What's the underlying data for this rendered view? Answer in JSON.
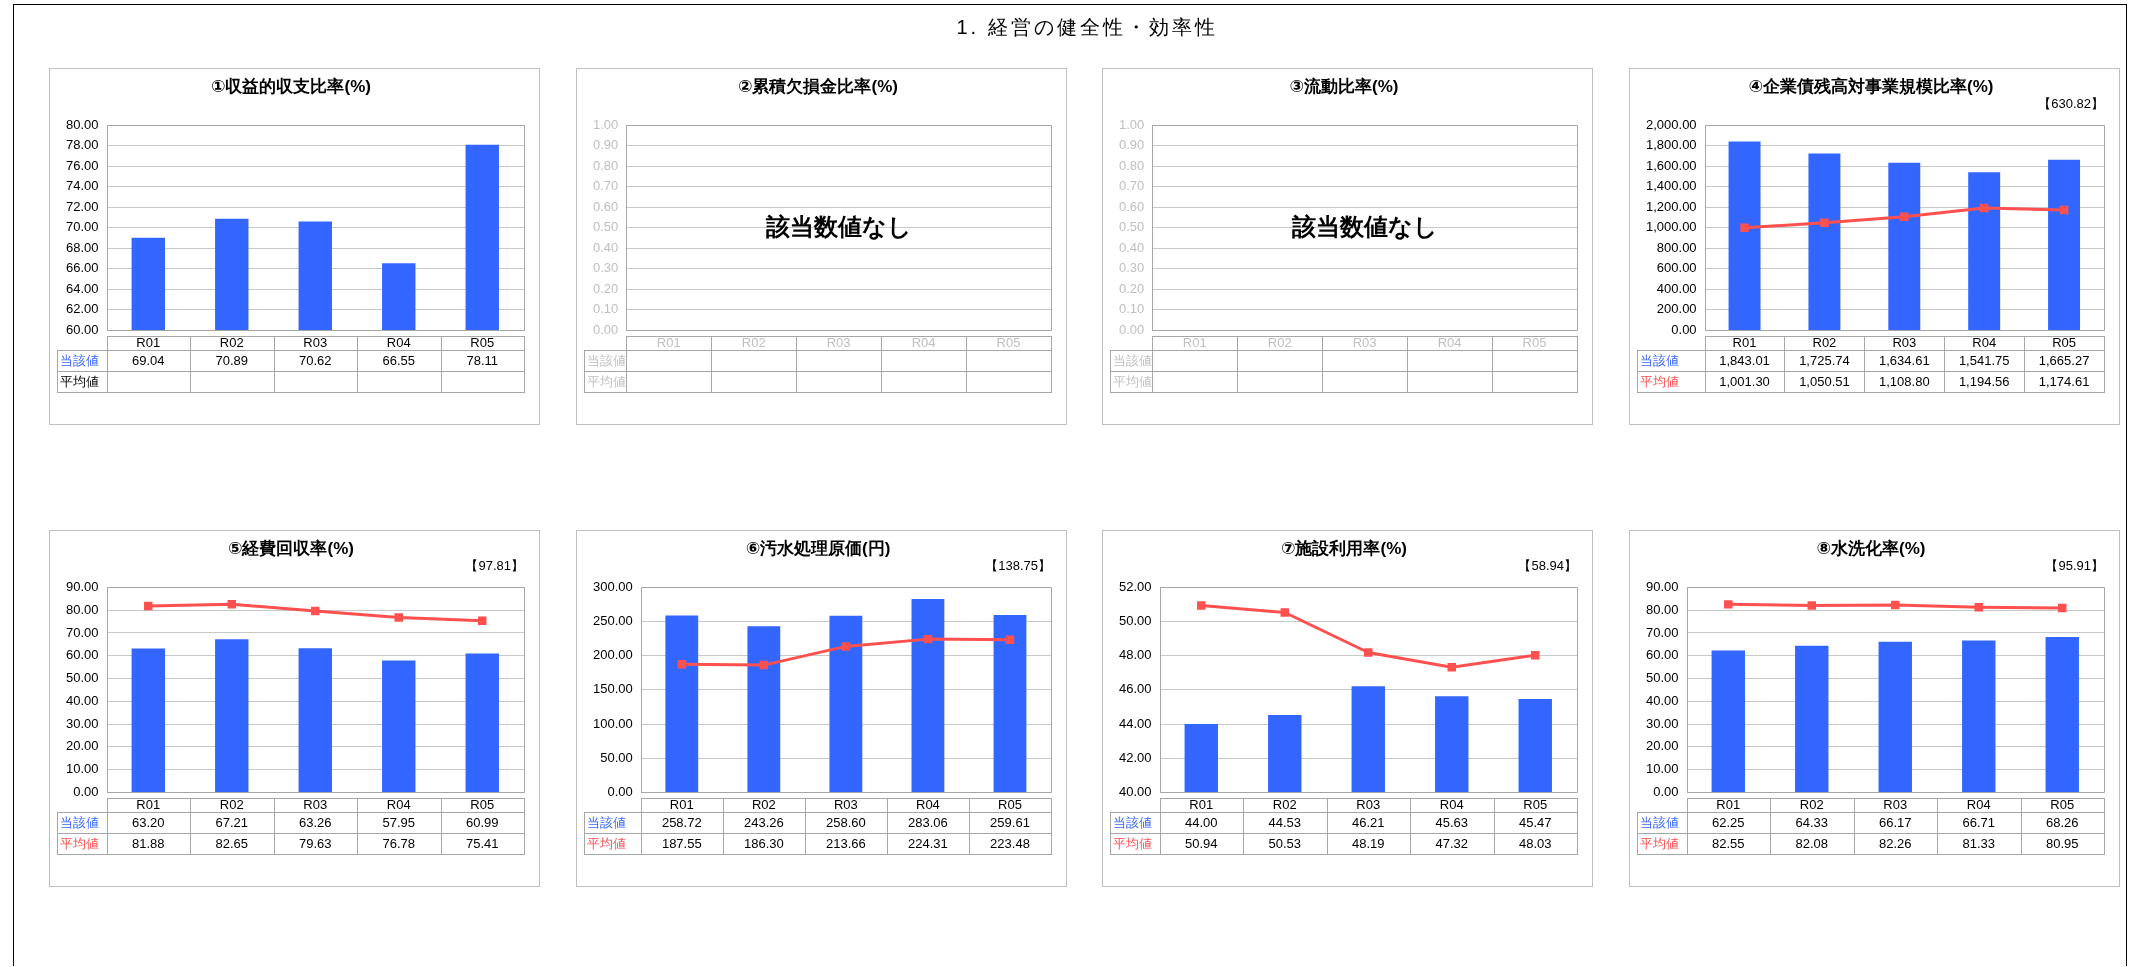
{
  "chart_data": [
    {
      "type": "other",
      "title": "1. 経営の健全性・効率性"
    },
    {
      "type": "bar",
      "title": "①収益的収支比率(%)",
      "categories": [
        "R01",
        "R02",
        "R03",
        "R04",
        "R05"
      ],
      "series": [
        {
          "name": "当該値",
          "color": "#3366ff",
          "values": [
            69.04,
            70.89,
            70.62,
            66.55,
            78.11
          ],
          "value_labels": [
            "69.04",
            "70.89",
            "70.62",
            "66.55",
            "78.11"
          ]
        },
        {
          "name": "平均値",
          "type": "line",
          "values": [
            null,
            null,
            null,
            null,
            null
          ]
        }
      ],
      "ylim": [
        60,
        80
      ],
      "yticks": [
        {
          "value": 60,
          "label": "60.00"
        },
        {
          "value": 62,
          "label": "62.00"
        },
        {
          "value": 64,
          "label": "64.00"
        },
        {
          "value": 66,
          "label": "66.00"
        },
        {
          "value": 68,
          "label": "68.00"
        },
        {
          "value": 70,
          "label": "70.00"
        },
        {
          "value": 72,
          "label": "72.00"
        },
        {
          "value": 74,
          "label": "74.00"
        },
        {
          "value": 76,
          "label": "76.00"
        },
        {
          "value": 78,
          "label": "78.00"
        },
        {
          "value": 80,
          "label": "80.00"
        }
      ],
      "grid": "y"
    },
    {
      "type": "bar",
      "title": "②累積欠損金比率(%)",
      "categories": [
        "R01",
        "R02",
        "R03",
        "R04",
        "R05"
      ],
      "series": [
        {
          "name": "当該値",
          "values": [
            null,
            null,
            null,
            null,
            null
          ]
        },
        {
          "name": "平均値",
          "values": [
            null,
            null,
            null,
            null,
            null
          ]
        }
      ],
      "ylim": [
        0,
        1
      ],
      "yticks": [
        {
          "value": 0,
          "label": "0.00"
        },
        {
          "value": 0.1,
          "label": "0.10"
        },
        {
          "value": 0.2,
          "label": "0.20"
        },
        {
          "value": 0.3,
          "label": "0.30"
        },
        {
          "value": 0.4,
          "label": "0.40"
        },
        {
          "value": 0.5,
          "label": "0.50"
        },
        {
          "value": 0.6,
          "label": "0.60"
        },
        {
          "value": 0.7,
          "label": "0.70"
        },
        {
          "value": 0.8,
          "label": "0.80"
        },
        {
          "value": 0.9,
          "label": "0.90"
        },
        {
          "value": 1,
          "label": "1.00"
        }
      ],
      "grid": "y",
      "annotations": [
        "該当数値なし"
      ]
    },
    {
      "type": "bar",
      "title": "③流動比率(%)",
      "categories": [
        "R01",
        "R02",
        "R03",
        "R04",
        "R05"
      ],
      "series": [
        {
          "name": "当該値",
          "values": [
            null,
            null,
            null,
            null,
            null
          ]
        },
        {
          "name": "平均値",
          "values": [
            null,
            null,
            null,
            null,
            null
          ]
        }
      ],
      "ylim": [
        0,
        1
      ],
      "yticks": [
        {
          "value": 0,
          "label": "0.00"
        },
        {
          "value": 0.1,
          "label": "0.10"
        },
        {
          "value": 0.2,
          "label": "0.20"
        },
        {
          "value": 0.3,
          "label": "0.30"
        },
        {
          "value": 0.4,
          "label": "0.40"
        },
        {
          "value": 0.5,
          "label": "0.50"
        },
        {
          "value": 0.6,
          "label": "0.60"
        },
        {
          "value": 0.7,
          "label": "0.70"
        },
        {
          "value": 0.8,
          "label": "0.80"
        },
        {
          "value": 0.9,
          "label": "0.90"
        },
        {
          "value": 1,
          "label": "1.00"
        }
      ],
      "grid": "y",
      "annotations": [
        "該当数値なし"
      ]
    },
    {
      "type": "bar",
      "title": "④企業債残高対事業規模比率(%)",
      "categories": [
        "R01",
        "R02",
        "R03",
        "R04",
        "R05"
      ],
      "series": [
        {
          "name": "当該値",
          "color": "#3366ff",
          "values": [
            1843.01,
            1725.74,
            1634.61,
            1541.75,
            1665.27
          ],
          "value_labels": [
            "1,843.01",
            "1,725.74",
            "1,634.61",
            "1,541.75",
            "1,665.27"
          ]
        },
        {
          "name": "平均値",
          "type": "line",
          "color": "#ff5050",
          "values": [
            1001.3,
            1050.51,
            1108.8,
            1194.56,
            1174.61
          ],
          "value_labels": [
            "1,001.30",
            "1,050.51",
            "1,108.80",
            "1,194.56",
            "1,174.61"
          ]
        }
      ],
      "ylim": [
        0,
        2000
      ],
      "yticks": [
        {
          "value": 0,
          "label": "0.00"
        },
        {
          "value": 200,
          "label": "200.00"
        },
        {
          "value": 400,
          "label": "400.00"
        },
        {
          "value": 600,
          "label": "600.00"
        },
        {
          "value": 800,
          "label": "800.00"
        },
        {
          "value": 1000,
          "label": "1,000.00"
        },
        {
          "value": 1200,
          "label": "1,200.00"
        },
        {
          "value": 1400,
          "label": "1,400.00"
        },
        {
          "value": 1600,
          "label": "1,600.00"
        },
        {
          "value": 1800,
          "label": "1,800.00"
        },
        {
          "value": 2000,
          "label": "2,000.00"
        }
      ],
      "grid": "y",
      "marker": "square",
      "annotations": [
        "【630.82】"
      ]
    },
    {
      "type": "bar",
      "title": "⑤経費回収率(%)",
      "categories": [
        "R01",
        "R02",
        "R03",
        "R04",
        "R05"
      ],
      "series": [
        {
          "name": "当該値",
          "color": "#3366ff",
          "values": [
            63.2,
            67.21,
            63.26,
            57.95,
            60.99
          ],
          "value_labels": [
            "63.20",
            "67.21",
            "63.26",
            "57.95",
            "60.99"
          ]
        },
        {
          "name": "平均値",
          "type": "line",
          "color": "#ff5050",
          "values": [
            81.88,
            82.65,
            79.63,
            76.78,
            75.41
          ],
          "value_labels": [
            "81.88",
            "82.65",
            "79.63",
            "76.78",
            "75.41"
          ]
        }
      ],
      "ylim": [
        0,
        90
      ],
      "yticks": [
        {
          "value": 0,
          "label": "0.00"
        },
        {
          "value": 10,
          "label": "10.00"
        },
        {
          "value": 20,
          "label": "20.00"
        },
        {
          "value": 30,
          "label": "30.00"
        },
        {
          "value": 40,
          "label": "40.00"
        },
        {
          "value": 50,
          "label": "50.00"
        },
        {
          "value": 60,
          "label": "60.00"
        },
        {
          "value": 70,
          "label": "70.00"
        },
        {
          "value": 80,
          "label": "80.00"
        },
        {
          "value": 90,
          "label": "90.00"
        }
      ],
      "grid": "y",
      "marker": "square",
      "annotations": [
        "【97.81】"
      ]
    },
    {
      "type": "bar",
      "title": "⑥汚水処理原価(円)",
      "categories": [
        "R01",
        "R02",
        "R03",
        "R04",
        "R05"
      ],
      "series": [
        {
          "name": "当該値",
          "color": "#3366ff",
          "values": [
            258.72,
            243.26,
            258.6,
            283.06,
            259.61
          ],
          "value_labels": [
            "258.72",
            "243.26",
            "258.60",
            "283.06",
            "259.61"
          ]
        },
        {
          "name": "平均値",
          "type": "line",
          "color": "#ff5050",
          "values": [
            187.55,
            186.3,
            213.66,
            224.31,
            223.48
          ],
          "value_labels": [
            "187.55",
            "186.30",
            "213.66",
            "224.31",
            "223.48"
          ]
        }
      ],
      "ylim": [
        0,
        300
      ],
      "yticks": [
        {
          "value": 0,
          "label": "0.00"
        },
        {
          "value": 50,
          "label": "50.00"
        },
        {
          "value": 100,
          "label": "100.00"
        },
        {
          "value": 150,
          "label": "150.00"
        },
        {
          "value": 200,
          "label": "200.00"
        },
        {
          "value": 250,
          "label": "250.00"
        },
        {
          "value": 300,
          "label": "300.00"
        }
      ],
      "grid": "y",
      "marker": "square",
      "annotations": [
        "【138.75】"
      ]
    },
    {
      "type": "bar",
      "title": "⑦施設利用率(%)",
      "categories": [
        "R01",
        "R02",
        "R03",
        "R04",
        "R05"
      ],
      "series": [
        {
          "name": "当該値",
          "color": "#3366ff",
          "values": [
            44.0,
            44.53,
            46.21,
            45.63,
            45.47
          ],
          "value_labels": [
            "44.00",
            "44.53",
            "46.21",
            "45.63",
            "45.47"
          ]
        },
        {
          "name": "平均値",
          "type": "line",
          "color": "#ff5050",
          "values": [
            50.94,
            50.53,
            48.19,
            47.32,
            48.03
          ],
          "value_labels": [
            "50.94",
            "50.53",
            "48.19",
            "47.32",
            "48.03"
          ]
        }
      ],
      "ylim": [
        40,
        52
      ],
      "yticks": [
        {
          "value": 40,
          "label": "40.00"
        },
        {
          "value": 42,
          "label": "42.00"
        },
        {
          "value": 44,
          "label": "44.00"
        },
        {
          "value": 46,
          "label": "46.00"
        },
        {
          "value": 48,
          "label": "48.00"
        },
        {
          "value": 50,
          "label": "50.00"
        },
        {
          "value": 52,
          "label": "52.00"
        }
      ],
      "grid": "y",
      "marker": "square",
      "annotations": [
        "【58.94】"
      ]
    },
    {
      "type": "bar",
      "title": "⑧水洗化率(%)",
      "categories": [
        "R01",
        "R02",
        "R03",
        "R04",
        "R05"
      ],
      "series": [
        {
          "name": "当該値",
          "color": "#3366ff",
          "values": [
            62.25,
            64.33,
            66.17,
            66.71,
            68.26
          ],
          "value_labels": [
            "62.25",
            "64.33",
            "66.17",
            "66.71",
            "68.26"
          ]
        },
        {
          "name": "平均値",
          "type": "line",
          "color": "#ff5050",
          "values": [
            82.55,
            82.08,
            82.26,
            81.33,
            80.95
          ],
          "value_labels": [
            "82.55",
            "82.08",
            "82.26",
            "81.33",
            "80.95"
          ]
        }
      ],
      "ylim": [
        0,
        90
      ],
      "yticks": [
        {
          "value": 0,
          "label": "0.00"
        },
        {
          "value": 10,
          "label": "10.00"
        },
        {
          "value": 20,
          "label": "20.00"
        },
        {
          "value": 30,
          "label": "30.00"
        },
        {
          "value": 40,
          "label": "40.00"
        },
        {
          "value": 50,
          "label": "50.00"
        },
        {
          "value": 60,
          "label": "60.00"
        },
        {
          "value": 70,
          "label": "70.00"
        },
        {
          "value": 80,
          "label": "80.00"
        },
        {
          "value": 90,
          "label": "90.00"
        }
      ],
      "grid": "y",
      "marker": "square",
      "annotations": [
        "【95.91】"
      ]
    }
  ]
}
